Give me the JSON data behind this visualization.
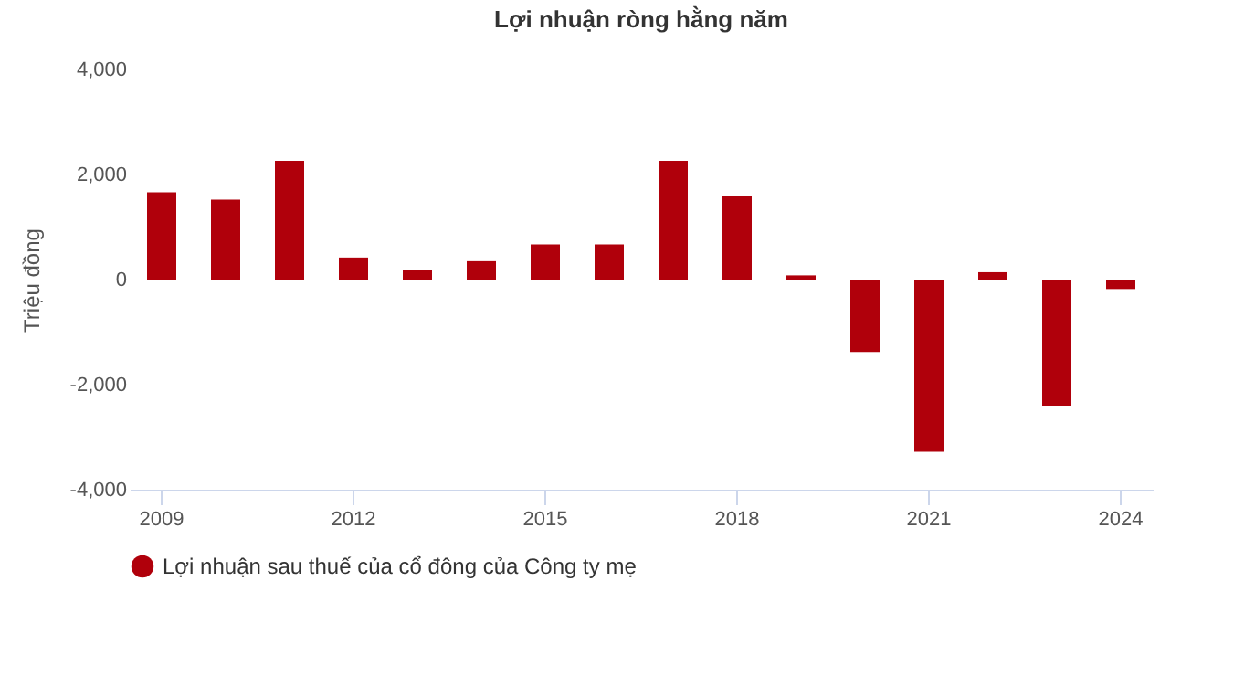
{
  "chart_data": {
    "type": "bar",
    "title": "Lợi nhuận ròng hằng năm",
    "ylabel": "Triệu đồng",
    "categories": [
      "2009",
      null,
      null,
      "2012",
      null,
      null,
      "2015",
      null,
      null,
      "2018",
      null,
      null,
      "2021",
      null,
      null,
      "2024"
    ],
    "series": [
      {
        "name": "Lợi nhuận sau thuế của cổ đông của Công ty mẹ",
        "color": "#b0000b",
        "values": [
          1660,
          1520,
          2260,
          420,
          180,
          350,
          670,
          670,
          2260,
          1590,
          80,
          -1380,
          -3280,
          140,
          -2400,
          -180
        ]
      }
    ],
    "ylim": [
      -4000,
      4000
    ],
    "yticks": [
      {
        "value": -4000,
        "label": "-4,000"
      },
      {
        "value": -2000,
        "label": "-2,000"
      },
      0,
      {
        "value": 2000,
        "label": "2,000"
      },
      {
        "value": 4000,
        "label": "4,000"
      }
    ],
    "grid": false,
    "legend": "bottom"
  }
}
